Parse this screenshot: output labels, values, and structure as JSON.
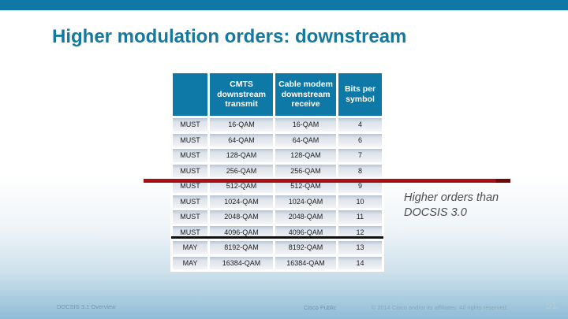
{
  "slide": {
    "title": "Higher modulation orders: downstream",
    "annotation": "Higher orders than DOCSIS 3.0"
  },
  "table": {
    "headers": [
      "",
      "CMTS downstream transmit",
      "Cable modem downstream receive",
      "Bits per symbol"
    ],
    "rows": [
      [
        "MUST",
        "16-QAM",
        "16-QAM",
        "4"
      ],
      [
        "MUST",
        "64-QAM",
        "64-QAM",
        "6"
      ],
      [
        "MUST",
        "128-QAM",
        "128-QAM",
        "7"
      ],
      [
        "MUST",
        "256-QAM",
        "256-QAM",
        "8"
      ],
      [
        "MUST",
        "512-QAM",
        "512-QAM",
        "9"
      ],
      [
        "MUST",
        "1024-QAM",
        "1024-QAM",
        "10"
      ],
      [
        "MUST",
        "2048-QAM",
        "2048-QAM",
        "11"
      ],
      [
        "MUST",
        "4096-QAM",
        "4096-QAM",
        "12"
      ],
      [
        "MAY",
        "8192-QAM",
        "8192-QAM",
        "13"
      ],
      [
        "MAY",
        "16384-QAM",
        "16384-QAM",
        "14"
      ]
    ]
  },
  "dividers": {
    "red_meaning": "separator after 256-QAM row",
    "black_meaning": "separator between MUST and MAY rows"
  },
  "footer": {
    "left": "DOCSIS 3.1 Overview",
    "center": "Cisco Public",
    "copyright": "© 2014 Cisco and/or its affiliates. All rights reserved.",
    "page_number": "51"
  },
  "colors": {
    "accent_teal": "#0e78a6",
    "title_teal": "#14789f",
    "divider_red": "#a81015",
    "divider_black": "#101010",
    "row_fill": "#dde3ea",
    "background_bottom_blue": "#8fbcd6"
  }
}
